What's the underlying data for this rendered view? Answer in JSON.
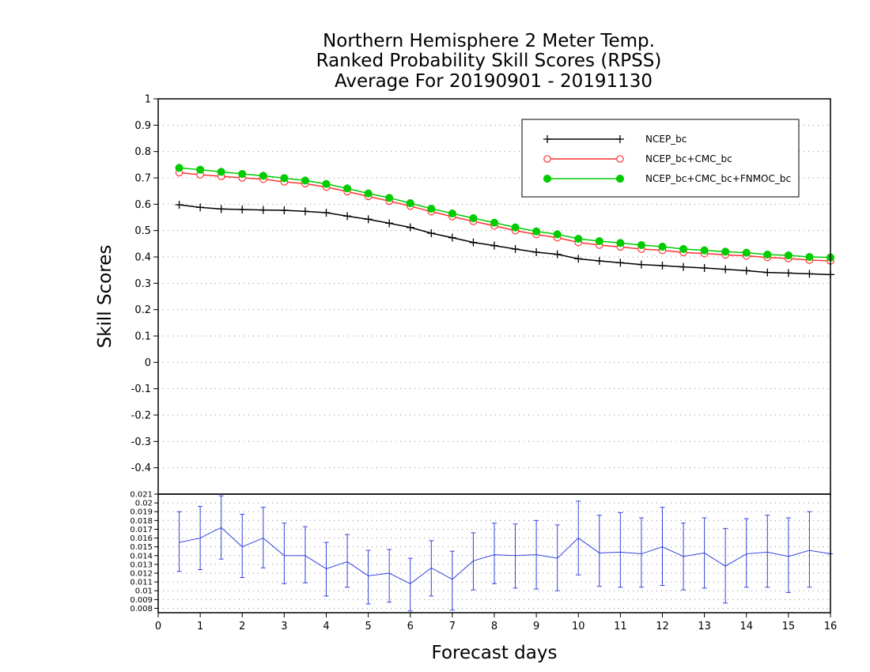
{
  "chart_data": [
    {
      "type": "line",
      "title_lines": [
        "Northern Hemisphere 2 Meter Temp.",
        "Ranked Probability Skill Scores (RPSS)",
        "Average For 20190901 - 20191130"
      ],
      "ylabel": "Skill Scores",
      "ylim": [
        -0.5,
        1.0
      ],
      "yticks": [
        "1",
        "0.9",
        "0.8",
        "0.7",
        "0.6",
        "0.5",
        "0.4",
        "0.3",
        "0.2",
        "0.1",
        "0",
        "-0.1",
        "-0.2",
        "-0.3",
        "-0.4"
      ],
      "grid": true,
      "legend_position": "top-right",
      "x": [
        0.5,
        1.0,
        1.5,
        2.0,
        2.5,
        3.0,
        3.5,
        4.0,
        4.5,
        5.0,
        5.5,
        6.0,
        6.5,
        7.0,
        7.5,
        8.0,
        8.5,
        9.0,
        9.5,
        10.0,
        10.5,
        11.0,
        11.5,
        12.0,
        12.5,
        13.0,
        13.5,
        14.0,
        14.5,
        15.0,
        15.5,
        16.0
      ],
      "series": [
        {
          "name": "NCEP_bc",
          "color": "#000000",
          "marker": "plus",
          "values": [
            0.598,
            0.588,
            0.582,
            0.58,
            0.578,
            0.577,
            0.573,
            0.568,
            0.555,
            0.543,
            0.528,
            0.512,
            0.49,
            0.473,
            0.455,
            0.443,
            0.43,
            0.418,
            0.41,
            0.393,
            0.385,
            0.378,
            0.371,
            0.367,
            0.362,
            0.358,
            0.353,
            0.348,
            0.341,
            0.339,
            0.336,
            0.333
          ]
        },
        {
          "name": "NCEP_bc+CMC_bc",
          "color": "#ff3333",
          "marker": "open-circle",
          "values": [
            0.72,
            0.712,
            0.706,
            0.7,
            0.695,
            0.685,
            0.678,
            0.665,
            0.648,
            0.63,
            0.612,
            0.593,
            0.572,
            0.553,
            0.535,
            0.518,
            0.5,
            0.485,
            0.473,
            0.455,
            0.445,
            0.438,
            0.43,
            0.425,
            0.417,
            0.413,
            0.408,
            0.404,
            0.398,
            0.394,
            0.388,
            0.385
          ]
        },
        {
          "name": "NCEP_bc+CMC_bc+FNMOC_bc",
          "color": "#00cc00",
          "marker": "filled-circle",
          "values": [
            0.738,
            0.731,
            0.723,
            0.715,
            0.708,
            0.699,
            0.69,
            0.677,
            0.66,
            0.641,
            0.624,
            0.604,
            0.583,
            0.565,
            0.547,
            0.53,
            0.512,
            0.497,
            0.486,
            0.469,
            0.46,
            0.453,
            0.445,
            0.439,
            0.43,
            0.425,
            0.42,
            0.416,
            0.409,
            0.406,
            0.4,
            0.398
          ]
        }
      ]
    },
    {
      "type": "line",
      "xlabel": "Forecast days",
      "xlim": [
        0,
        16
      ],
      "xticks": [
        "0",
        "1",
        "2",
        "3",
        "4",
        "5",
        "6",
        "7",
        "8",
        "9",
        "10",
        "11",
        "12",
        "13",
        "14",
        "15",
        "16"
      ],
      "ylim": [
        0.0075,
        0.021
      ],
      "yticks": [
        "0.021",
        "0.02",
        "0.019",
        "0.018",
        "0.017",
        "0.016",
        "0.015",
        "0.014",
        "0.013",
        "0.012",
        "0.011",
        "0.01",
        "0.009",
        "0.008"
      ],
      "grid": true,
      "x": [
        0.5,
        1.0,
        1.5,
        2.0,
        2.5,
        3.0,
        3.5,
        4.0,
        4.5,
        5.0,
        5.5,
        6.0,
        6.5,
        7.0,
        7.5,
        8.0,
        8.5,
        9.0,
        9.5,
        10.0,
        10.5,
        11.0,
        11.5,
        12.0,
        12.5,
        13.0,
        13.5,
        14.0,
        14.5,
        15.0,
        15.5,
        16.0
      ],
      "series": [
        {
          "color": "#3344dd",
          "marker": "error-bar",
          "values": [
            0.0155,
            0.016,
            0.0172,
            0.015,
            0.016,
            0.014,
            0.014,
            0.0125,
            0.0133,
            0.0117,
            0.012,
            0.0108,
            0.0126,
            0.0113,
            0.0134,
            0.0141,
            0.014,
            0.0141,
            0.0137,
            0.016,
            0.0143,
            0.0144,
            0.0142,
            0.015,
            0.0139,
            0.0143,
            0.0128,
            0.0142,
            0.0144,
            0.0139,
            0.0146,
            0.0142
          ],
          "upper": [
            0.019,
            0.0196,
            0.0208,
            0.0187,
            0.0195,
            0.0177,
            0.0173,
            0.0155,
            0.0164,
            0.0146,
            0.0147,
            0.0137,
            0.0157,
            0.0145,
            0.0166,
            0.0177,
            0.0176,
            0.018,
            0.0175,
            0.0202,
            0.0186,
            0.0189,
            0.0183,
            0.0195,
            0.0177,
            0.0183,
            0.0171,
            0.0182,
            0.0186,
            0.0183,
            0.019,
            0.0142
          ],
          "lower": [
            0.0122,
            0.0124,
            0.0136,
            0.0115,
            0.0126,
            0.0108,
            0.0109,
            0.0094,
            0.0104,
            0.0085,
            0.0087,
            0.0077,
            0.0094,
            0.0078,
            0.0101,
            0.0108,
            0.0103,
            0.0102,
            0.01,
            0.0118,
            0.0105,
            0.0104,
            0.0104,
            0.0106,
            0.0101,
            0.0103,
            0.0086,
            0.0104,
            0.0104,
            0.0098,
            0.0104,
            0.0142
          ]
        }
      ]
    }
  ]
}
